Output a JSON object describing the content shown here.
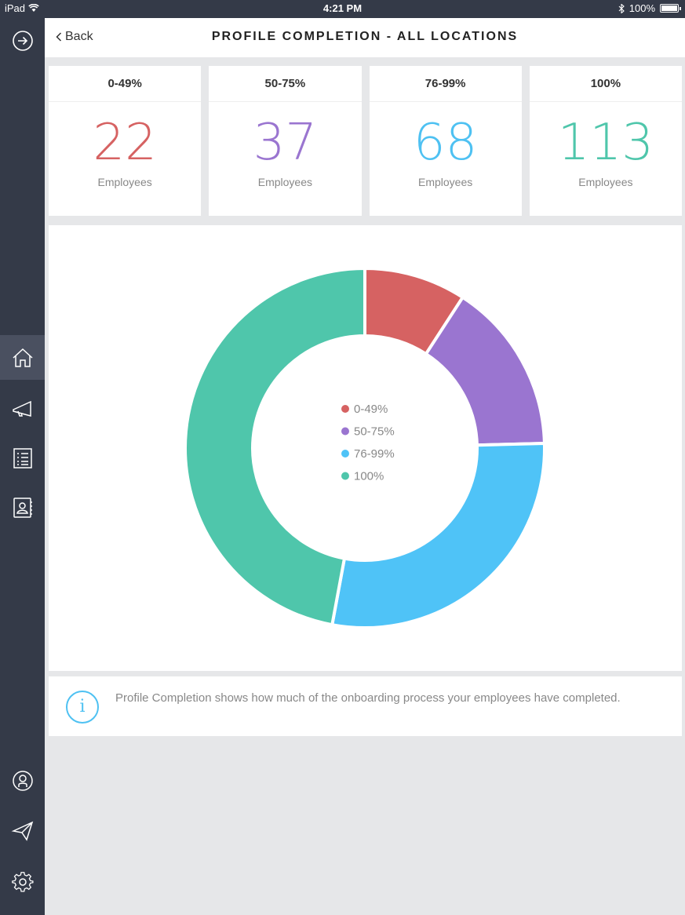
{
  "status_bar": {
    "device": "iPad",
    "time": "4:21 PM",
    "battery": "100%"
  },
  "header": {
    "back_label": "Back",
    "title": "PROFILE COMPLETION - ALL LOCATIONS"
  },
  "sidebar": {
    "items": [
      {
        "icon": "arrow-right-circle-icon"
      },
      {
        "icon": "home-icon",
        "active": true
      },
      {
        "icon": "megaphone-icon"
      },
      {
        "icon": "checklist-icon"
      },
      {
        "icon": "contact-book-icon"
      },
      {
        "icon": "user-circle-icon"
      },
      {
        "icon": "paper-plane-icon"
      },
      {
        "icon": "gear-icon"
      }
    ]
  },
  "cards": [
    {
      "range": "0-49%",
      "count": "22",
      "unit": "Employees",
      "color": "#d66262"
    },
    {
      "range": "50-75%",
      "count": "37",
      "unit": "Employees",
      "color": "#9a75d0"
    },
    {
      "range": "76-99%",
      "count": "68",
      "unit": "Employees",
      "color": "#4ec1f2"
    },
    {
      "range": "100%",
      "count": "113",
      "unit": "Employees",
      "color": "#4fc6ab"
    }
  ],
  "chart_data": {
    "type": "pie",
    "donut": true,
    "categories": [
      "0-49%",
      "50-75%",
      "76-99%",
      "100%"
    ],
    "values": [
      22,
      37,
      68,
      113
    ],
    "colors": [
      "#d66262",
      "#9a75d0",
      "#4fc3f7",
      "#4fc6ab"
    ],
    "legend_position": "center"
  },
  "info": {
    "text": "Profile Completion shows how much of the onboarding process your employees have completed."
  }
}
